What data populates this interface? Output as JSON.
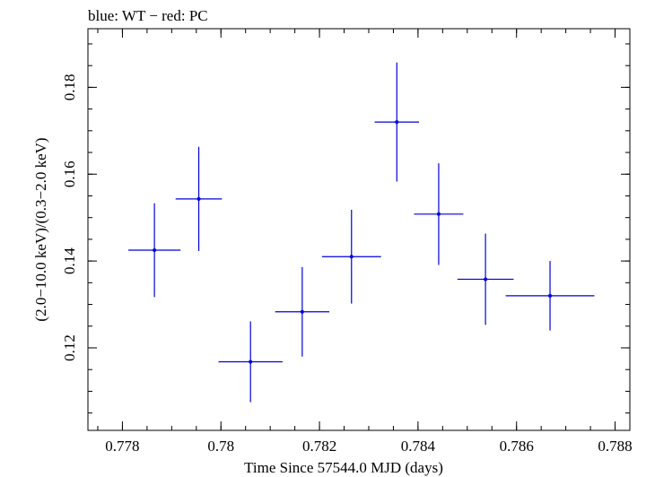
{
  "chart_data": {
    "type": "scatter",
    "title": "blue: WT − red: PC",
    "xlabel": "Time Since 57544.0 MJD (days)",
    "ylabel": "(2.0−10.0 keV)/(0.3−2.0 keV)",
    "xlim": [
      0.7773,
      0.7883
    ],
    "ylim": [
      0.101,
      0.1935
    ],
    "x_major_ticks": [
      0.778,
      0.78,
      0.782,
      0.784,
      0.786,
      0.788
    ],
    "x_tick_labels": [
      "0.778",
      "0.78",
      "0.782",
      "0.784",
      "0.786",
      "0.788"
    ],
    "y_major_ticks": [
      0.12,
      0.14,
      0.16,
      0.18
    ],
    "y_tick_labels": [
      "0.12",
      "0.14",
      "0.16",
      "0.18"
    ],
    "x_minor_step": 0.0005,
    "y_minor_step": 0.005,
    "grid": false,
    "series": [
      {
        "name": "WT",
        "color": "#0000dd",
        "points": [
          {
            "x": 0.77865,
            "x_err": 0.00053,
            "y": 0.1425,
            "y_err": 0.0108
          },
          {
            "x": 0.77955,
            "x_err": 0.00047,
            "y": 0.1543,
            "y_err": 0.012
          },
          {
            "x": 0.7806,
            "x_err": 0.00065,
            "y": 0.1168,
            "y_err": 0.0093
          },
          {
            "x": 0.78165,
            "x_err": 0.00055,
            "y": 0.1283,
            "y_err": 0.0103
          },
          {
            "x": 0.78265,
            "x_err": 0.0006,
            "y": 0.141,
            "y_err": 0.0108
          },
          {
            "x": 0.78357,
            "x_err": 0.00045,
            "y": 0.172,
            "y_err": 0.0137
          },
          {
            "x": 0.78442,
            "x_err": 0.0005,
            "y": 0.1508,
            "y_err": 0.0117
          },
          {
            "x": 0.78537,
            "x_err": 0.00057,
            "y": 0.1358,
            "y_err": 0.0105
          },
          {
            "x": 0.78668,
            "x_err": 0.0009,
            "y": 0.132,
            "y_err": 0.008
          }
        ]
      }
    ]
  }
}
